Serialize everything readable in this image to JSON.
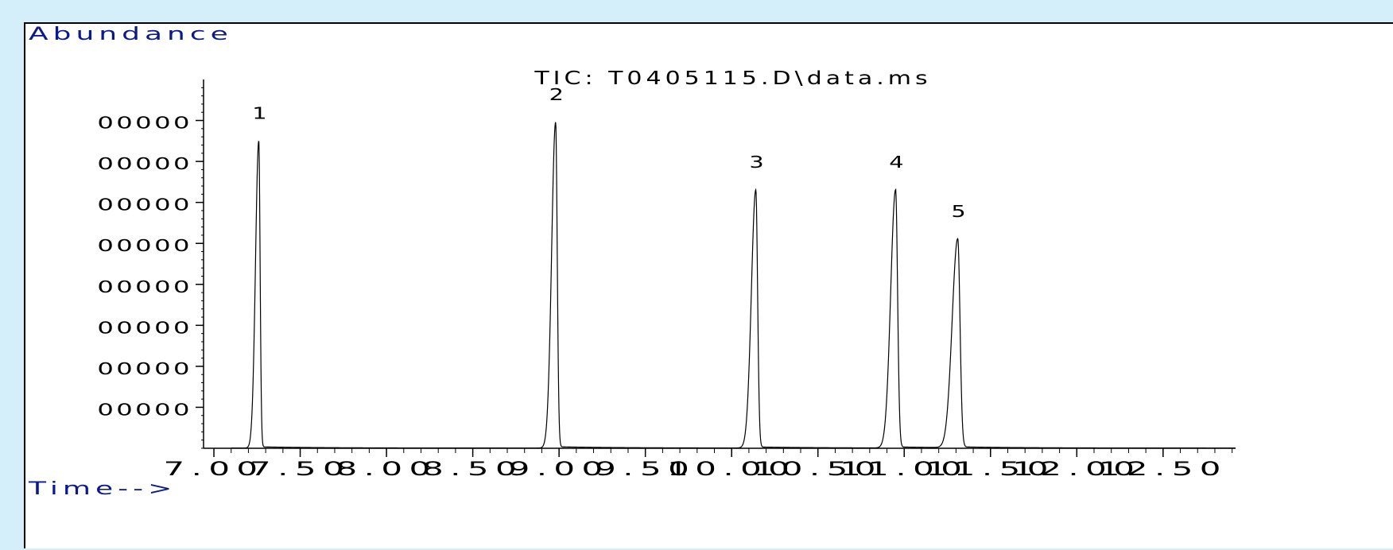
{
  "chart_data": {
    "type": "line",
    "title": "TIC: T0405115.D\\data.ms",
    "ylabel": "Abundance",
    "xlabel": "Time-->",
    "xlim": [
      6.94,
      12.92
    ],
    "ylim": [
      0,
      9000000
    ],
    "x_tick_labels": [
      "7.00",
      "7.50",
      "8.00",
      "8.50",
      "9.00",
      "9.50",
      "10.00",
      "10.50",
      "11.00",
      "11.50",
      "12.00",
      "12.50"
    ],
    "x_tick_positions": [
      7.0,
      7.5,
      8.0,
      8.5,
      9.0,
      9.5,
      10.0,
      10.5,
      11.0,
      11.5,
      12.0,
      12.5
    ],
    "y_tick_values": [
      1000000,
      2000000,
      3000000,
      4000000,
      5000000,
      6000000,
      7000000,
      8000000
    ],
    "y_tick_labels": [
      "00000",
      "00000",
      "00000",
      "00000",
      "00000",
      "00000",
      "00000",
      "00000"
    ],
    "grid": false,
    "line_color": "#000000",
    "peaks": [
      {
        "label": "1",
        "x": 7.26,
        "y": 7500000,
        "width": 0.014
      },
      {
        "label": "2",
        "x": 8.98,
        "y": 7950000,
        "width": 0.017
      },
      {
        "label": "3",
        "x": 10.14,
        "y": 6300000,
        "width": 0.019
      },
      {
        "label": "4",
        "x": 10.95,
        "y": 6300000,
        "width": 0.021
      },
      {
        "label": "5",
        "x": 11.31,
        "y": 5100000,
        "width": 0.024
      }
    ]
  }
}
